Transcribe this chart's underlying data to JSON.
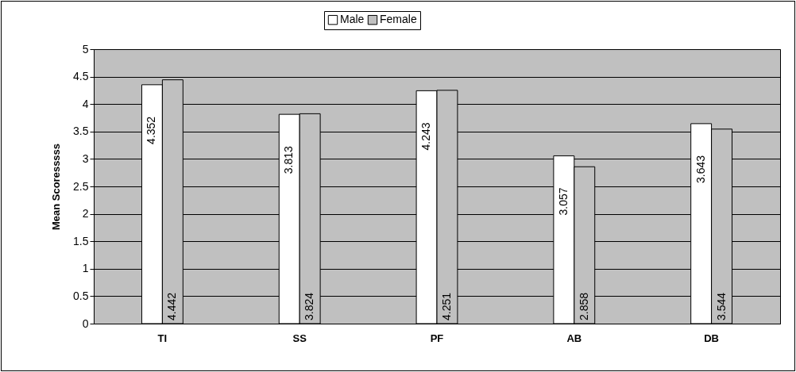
{
  "chart_data": {
    "type": "bar",
    "ylabel": "Mean Scoresssss",
    "categories": [
      "TI",
      "SS",
      "PF",
      "AB",
      "DB"
    ],
    "series": [
      {
        "name": "Male",
        "color": "#ffffff",
        "values": [
          4.352,
          3.813,
          4.243,
          3.057,
          3.643
        ]
      },
      {
        "name": "Female",
        "color": "#c0c0c0",
        "values": [
          4.442,
          3.824,
          4.251,
          2.858,
          3.544
        ]
      }
    ],
    "ylim": [
      0,
      5
    ],
    "yticks": [
      0,
      0.5,
      1,
      1.5,
      2,
      2.5,
      3,
      3.5,
      4,
      4.5,
      5
    ],
    "grid": "y",
    "legend": "top",
    "data_labels": true
  }
}
